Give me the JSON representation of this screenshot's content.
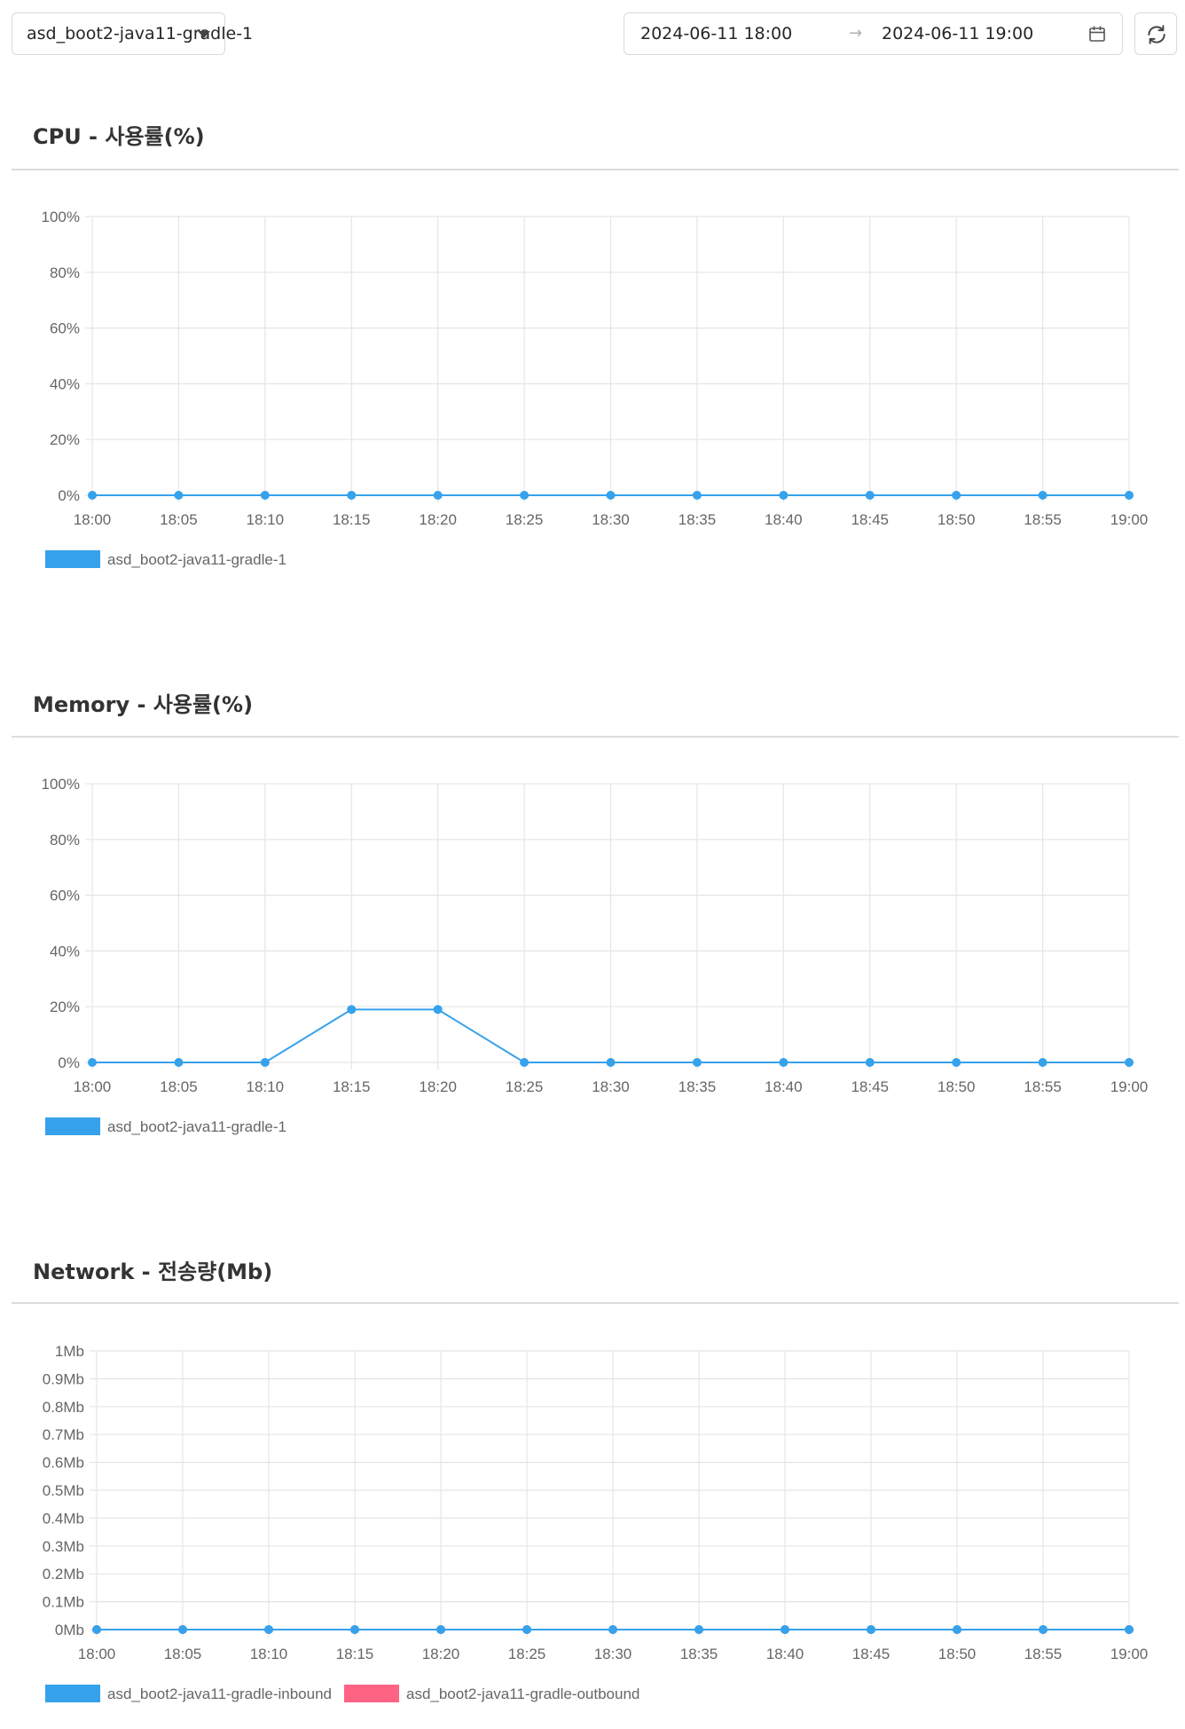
{
  "toolbar": {
    "selected_container": "asd_boot2-java11-gradle-1",
    "date_start": "2024-06-11 18:00",
    "date_separator": "→",
    "date_end": "2024-06-11 19:00",
    "icons": {
      "dropdown": "caret-down-icon",
      "calendar": "calendar-icon",
      "refresh": "refresh-icon"
    }
  },
  "colors": {
    "blue": "#36a2eb",
    "pink": "#ff6384",
    "grid": "#e5e5e5",
    "axis_text": "#666666"
  },
  "sections": [
    {
      "title": "CPU - 사용률(%)"
    },
    {
      "title": "Memory - 사용률(%)"
    },
    {
      "title": "Network - 전송량(Mb)"
    }
  ],
  "chart_data": [
    {
      "type": "line",
      "x": [
        "18:00",
        "18:05",
        "18:10",
        "18:15",
        "18:20",
        "18:25",
        "18:30",
        "18:35",
        "18:40",
        "18:45",
        "18:50",
        "18:55",
        "19:00"
      ],
      "yticks": [
        "0%",
        "20%",
        "40%",
        "60%",
        "80%",
        "100%"
      ],
      "ylim": [
        0,
        100
      ],
      "grid": true,
      "legend_position": "bottom-left",
      "series": [
        {
          "name": "asd_boot2-java11-gradle-1",
          "color": "#36a2eb",
          "values": [
            0,
            0,
            0,
            0,
            0,
            0,
            0,
            0,
            0,
            0,
            0,
            0,
            0
          ]
        }
      ]
    },
    {
      "type": "line",
      "x": [
        "18:00",
        "18:05",
        "18:10",
        "18:15",
        "18:20",
        "18:25",
        "18:30",
        "18:35",
        "18:40",
        "18:45",
        "18:50",
        "18:55",
        "19:00"
      ],
      "yticks": [
        "0%",
        "20%",
        "40%",
        "60%",
        "80%",
        "100%"
      ],
      "ylim": [
        0,
        100
      ],
      "grid": true,
      "legend_position": "bottom-left",
      "series": [
        {
          "name": "asd_boot2-java11-gradle-1",
          "color": "#36a2eb",
          "values": [
            0,
            0,
            0,
            19,
            19,
            0,
            0,
            0,
            0,
            0,
            0,
            0,
            0
          ]
        }
      ]
    },
    {
      "type": "line",
      "x": [
        "18:00",
        "18:05",
        "18:10",
        "18:15",
        "18:20",
        "18:25",
        "18:30",
        "18:35",
        "18:40",
        "18:45",
        "18:50",
        "18:55",
        "19:00"
      ],
      "yticks": [
        "0Mb",
        "0.1Mb",
        "0.2Mb",
        "0.3Mb",
        "0.4Mb",
        "0.5Mb",
        "0.6Mb",
        "0.7Mb",
        "0.8Mb",
        "0.9Mb",
        "1Mb"
      ],
      "ylim": [
        0,
        1
      ],
      "grid": true,
      "legend_position": "bottom-left",
      "series": [
        {
          "name": "asd_boot2-java11-gradle-inbound",
          "color": "#36a2eb",
          "values": [
            0,
            0,
            0,
            0,
            0,
            0,
            0,
            0,
            0,
            0,
            0,
            0,
            0
          ]
        },
        {
          "name": "asd_boot2-java11-gradle-outbound",
          "color": "#ff6384",
          "values": [
            0,
            0,
            0,
            0,
            0,
            0,
            0,
            0,
            0,
            0,
            0,
            0,
            0
          ]
        }
      ]
    }
  ]
}
